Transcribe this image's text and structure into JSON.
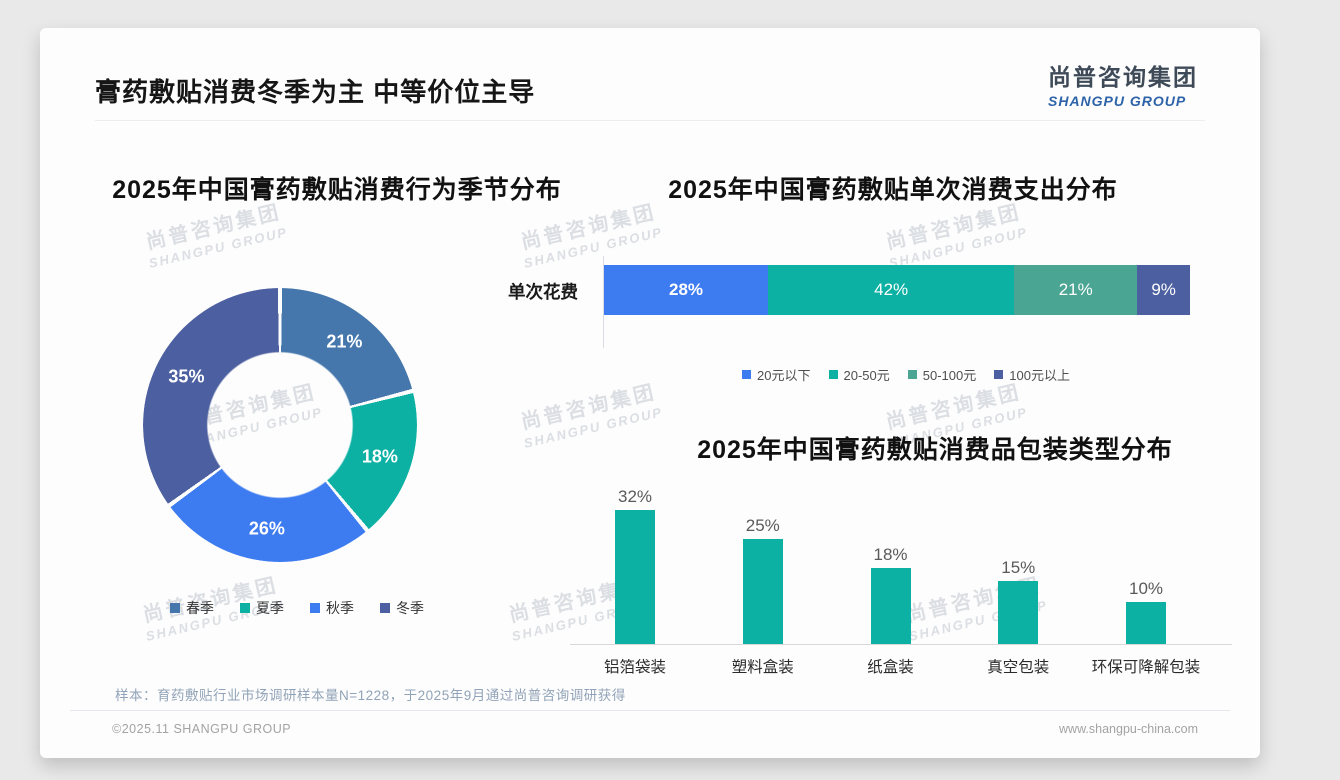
{
  "page": {
    "slide_title": "膏药敷贴消费冬季为主 中等价位主导",
    "logo": {
      "cn": "尚普咨询集团",
      "en": "SHANGPU GROUP"
    },
    "watermark": {
      "cn": "尚普咨询集团",
      "en": "SHANGPU GROUP"
    },
    "footnote": "样本：育药敷贴行业市场调研样本量N=1228，于2025年9月通过尚普咨询调研获得",
    "footer_left": "©2025.11 SHANGPU GROUP",
    "footer_right": "www.shangpu-china.com"
  },
  "colors": {
    "steel_blue": "#4577ad",
    "teal": "#0cb1a4",
    "bright_blue": "#3d7bf0",
    "slate_blue": "#4c5fa0",
    "sea_green": "#4aa592",
    "card_bg": "#fdfdfd"
  },
  "chart_data": [
    {
      "type": "pie",
      "variant": "donut",
      "title": "2025年中国膏药敷贴消费行为季节分布",
      "categories": [
        "春季",
        "夏季",
        "秋季",
        "冬季"
      ],
      "values": [
        21,
        18,
        26,
        35
      ],
      "unit": "%",
      "colors": [
        "#4577ad",
        "#0cb1a4",
        "#3d7bf0",
        "#4c5fa0"
      ],
      "start_angle_deg": 0,
      "direction": "clockwise",
      "legend_position": "bottom"
    },
    {
      "type": "bar",
      "variant": "stacked-horizontal",
      "title": "2025年中国膏药敷贴单次消费支出分布",
      "row_label": "单次花费",
      "categories": [
        "20元以下",
        "20-50元",
        "50-100元",
        "100元以上"
      ],
      "values": [
        28,
        42,
        21,
        9
      ],
      "unit": "%",
      "colors": [
        "#3d7bf0",
        "#0cb1a4",
        "#4aa592",
        "#4c5fa0"
      ],
      "legend_position": "bottom"
    },
    {
      "type": "bar",
      "variant": "vertical",
      "title": "2025年中国膏药敷贴消费品包装类型分布",
      "categories": [
        "铝箔袋装",
        "塑料盒装",
        "纸盒装",
        "真空包装",
        "环保可降解包装"
      ],
      "values": [
        32,
        25,
        18,
        15,
        10
      ],
      "unit": "%",
      "bar_color": "#0cb1a4",
      "ylim": [
        0,
        35
      ],
      "grid": false
    }
  ]
}
